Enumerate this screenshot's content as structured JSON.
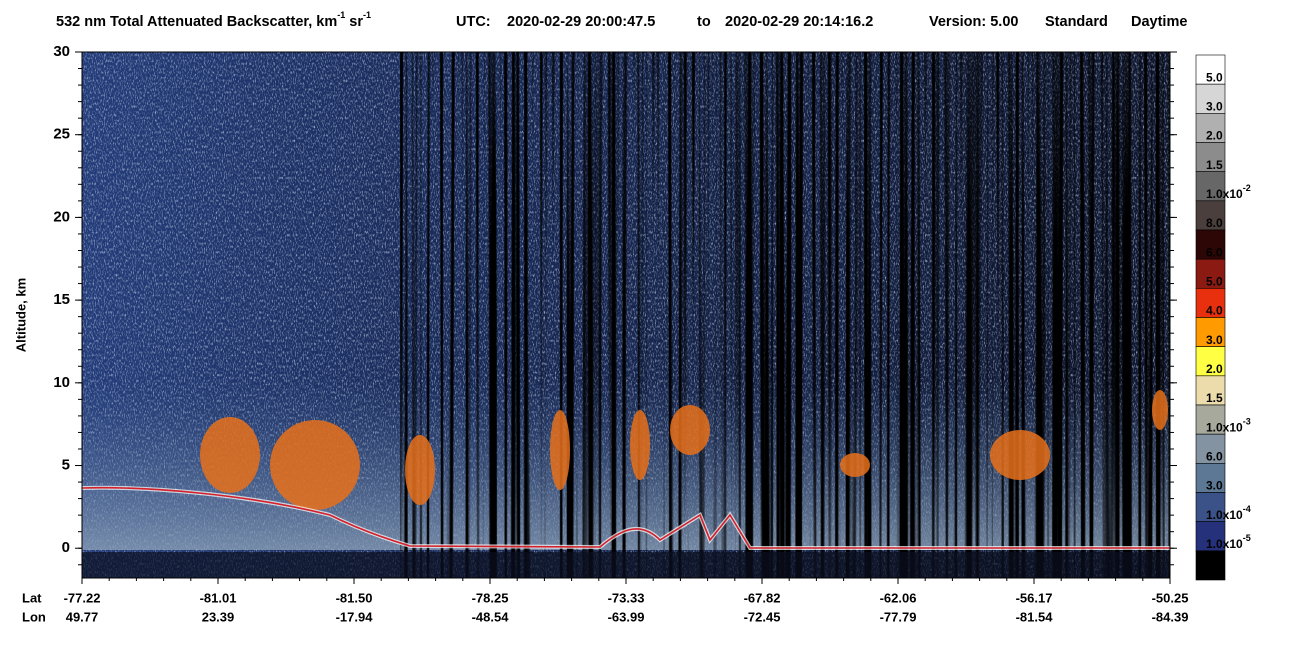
{
  "chart_data": {
    "type": "curtain",
    "title": "532 nm Total Attenuated Backscatter, km",
    "title_sup1": "-1",
    "title_mid": " sr",
    "title_sup2": "-1",
    "utc_label": "UTC:",
    "utc_start": "2020-02-29 20:00:47.5",
    "utc_to": "to",
    "utc_end": "2020-02-29 20:14:16.2",
    "version": "Version: 5.00",
    "product": "Standard",
    "daytime": "Daytime",
    "ylabel": "Altitude, km",
    "ylim": [
      -1.8,
      30
    ],
    "yticks": [
      0,
      5,
      10,
      15,
      20,
      25,
      30
    ],
    "lat_label": "Lat",
    "lon_label": "Lon",
    "lat": [
      "-77.22",
      "-81.01",
      "-81.50",
      "-78.25",
      "-73.33",
      "-67.82",
      "-62.06",
      "-56.17",
      "-50.25"
    ],
    "lon": [
      "49.77",
      "23.39",
      "-17.94",
      "-48.54",
      "-63.99",
      "-72.45",
      "-77.79",
      "-81.54",
      "-84.39"
    ],
    "colorbar": {
      "colors": [
        "#ffffff",
        "#d6d6d6",
        "#b0b0b0",
        "#8c8c8c",
        "#676767",
        "#4a3f3c",
        "#2d0705",
        "#8b1a12",
        "#e8300e",
        "#ff9a00",
        "#ffff44",
        "#ecdcac",
        "#a7a99c",
        "#8493a1",
        "#5c7895",
        "#3b5288",
        "#25317a",
        "#000000"
      ],
      "labels": [
        {
          "text": "5.0"
        },
        {
          "text": "3.0"
        },
        {
          "text": "2.0"
        },
        {
          "text": "1.5"
        },
        {
          "text": "1.0x10",
          "sup": "-2"
        },
        {
          "text": "8.0"
        },
        {
          "text": "6.0"
        },
        {
          "text": "5.0"
        },
        {
          "text": "4.0"
        },
        {
          "text": "3.0"
        },
        {
          "text": "2.0"
        },
        {
          "text": "1.5"
        },
        {
          "text": "1.0x10",
          "sup": "-3"
        },
        {
          "text": "6.0"
        },
        {
          "text": "3.0"
        },
        {
          "text": "1.0x10",
          "sup": "-4"
        },
        {
          "text": "1.0x10",
          "sup": "-5"
        }
      ]
    }
  }
}
